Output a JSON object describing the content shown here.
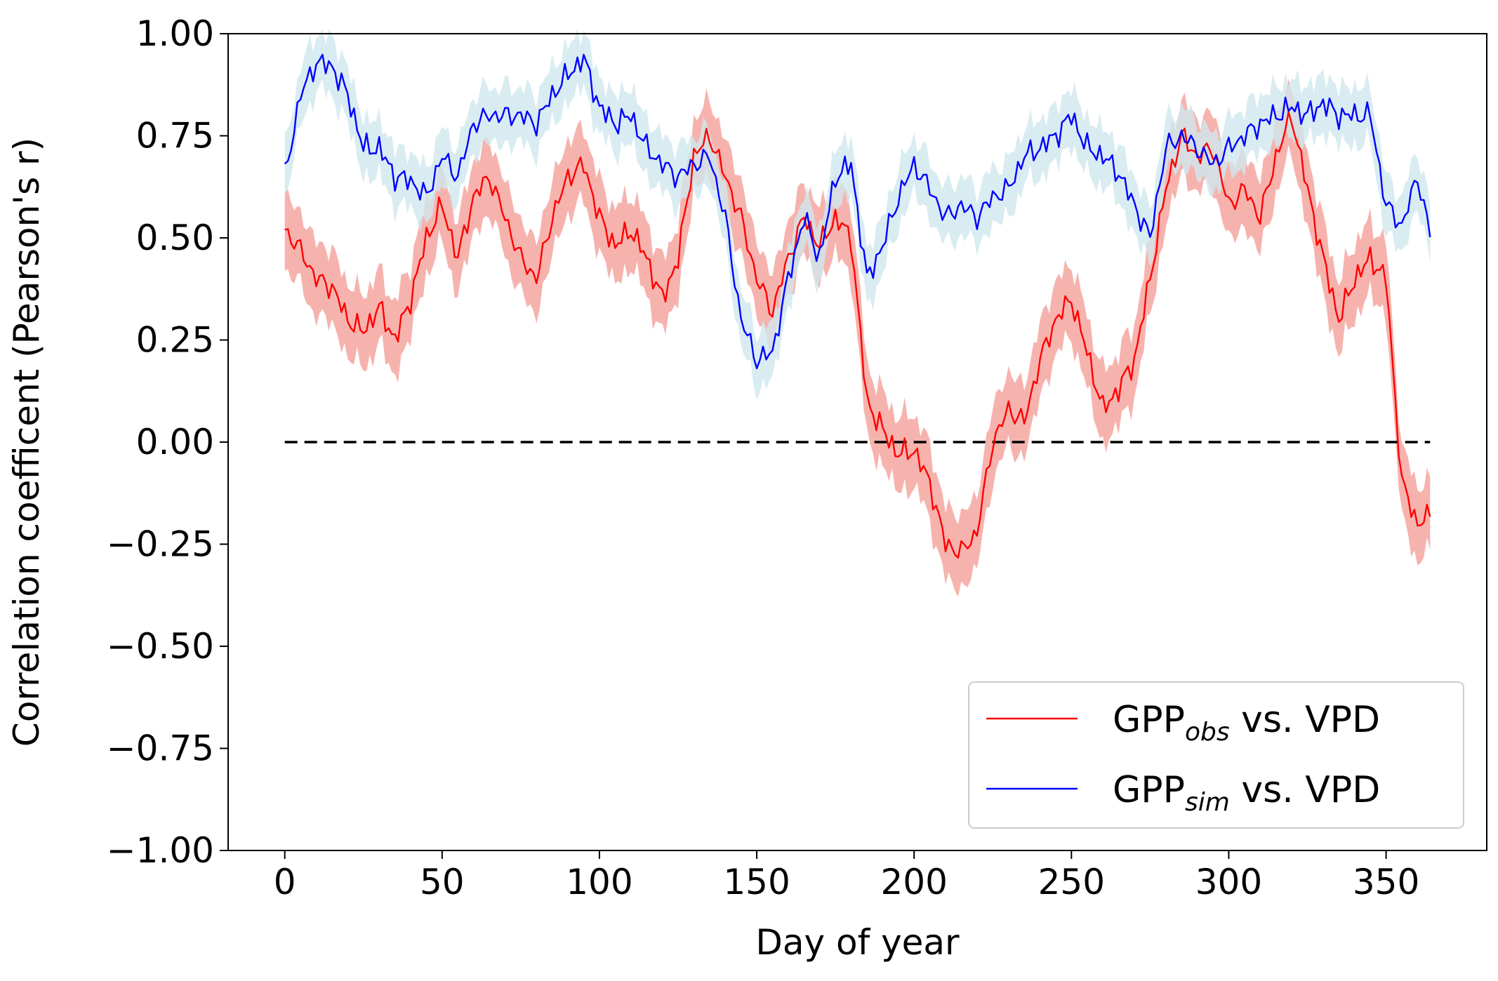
{
  "chart_data": {
    "type": "line",
    "title": "",
    "xlabel": "Day of year",
    "ylabel": "Correlation coefficent (Pearson's r)",
    "xlim": [
      -18,
      382
    ],
    "ylim": [
      -1.0,
      1.0
    ],
    "x_ticks": [
      0,
      50,
      100,
      150,
      200,
      250,
      300,
      350
    ],
    "y_ticks": [
      -1.0,
      -0.75,
      -0.5,
      -0.25,
      0.0,
      0.25,
      0.5,
      0.75,
      1.0
    ],
    "x_tick_labels": [
      "0",
      "50",
      "100",
      "150",
      "200",
      "250",
      "300",
      "350"
    ],
    "y_tick_labels": [
      "−1.00",
      "−0.75",
      "−0.50",
      "−0.25",
      "0.00",
      "0.25",
      "0.50",
      "0.75",
      "1.00"
    ],
    "grid": false,
    "legend_position": "lower-right",
    "reference_line": {
      "y": 0.0,
      "x_range": [
        0,
        364
      ],
      "style": "dashed",
      "color": "#000000"
    },
    "band_halfwidth_note_free": true,
    "series": [
      {
        "name": "GPPobs vs. VPD",
        "legend_base": "GPP",
        "legend_sub": "obs",
        "legend_suffix": " vs. VPD",
        "color": "#ff0000",
        "band_color": "#f4a09a",
        "x": [
          0,
          5,
          10,
          15,
          20,
          25,
          30,
          35,
          40,
          45,
          50,
          55,
          60,
          65,
          70,
          75,
          80,
          85,
          90,
          95,
          100,
          105,
          110,
          115,
          120,
          125,
          130,
          135,
          140,
          145,
          150,
          155,
          160,
          165,
          170,
          175,
          180,
          185,
          190,
          195,
          200,
          205,
          210,
          215,
          220,
          225,
          230,
          235,
          240,
          245,
          250,
          255,
          260,
          265,
          270,
          275,
          280,
          285,
          290,
          295,
          300,
          305,
          310,
          315,
          320,
          325,
          330,
          335,
          340,
          345,
          350,
          355,
          360,
          364
        ],
        "y": [
          0.52,
          0.47,
          0.4,
          0.38,
          0.3,
          0.27,
          0.33,
          0.25,
          0.35,
          0.5,
          0.58,
          0.45,
          0.6,
          0.65,
          0.55,
          0.45,
          0.4,
          0.55,
          0.65,
          0.68,
          0.55,
          0.48,
          0.52,
          0.45,
          0.35,
          0.45,
          0.7,
          0.75,
          0.65,
          0.55,
          0.4,
          0.32,
          0.45,
          0.55,
          0.48,
          0.55,
          0.5,
          0.1,
          0.03,
          -0.03,
          -0.02,
          -0.1,
          -0.25,
          -0.27,
          -0.22,
          0.0,
          0.08,
          0.05,
          0.2,
          0.3,
          0.35,
          0.22,
          0.08,
          0.13,
          0.2,
          0.4,
          0.62,
          0.75,
          0.7,
          0.72,
          0.58,
          0.62,
          0.55,
          0.7,
          0.8,
          0.62,
          0.45,
          0.3,
          0.4,
          0.45,
          0.4,
          -0.1,
          -0.2,
          -0.18
        ],
        "band": 0.09
      },
      {
        "name": "GPPsim vs. VPD",
        "legend_base": "GPP",
        "legend_sub": "sim",
        "legend_suffix": " vs. VPD",
        "color": "#0000ff",
        "band_color": "#cfe7ee",
        "x": [
          0,
          5,
          10,
          15,
          20,
          25,
          30,
          35,
          40,
          45,
          50,
          55,
          60,
          65,
          70,
          75,
          80,
          85,
          90,
          95,
          100,
          105,
          110,
          115,
          120,
          125,
          130,
          135,
          140,
          145,
          150,
          155,
          160,
          165,
          170,
          175,
          180,
          185,
          190,
          195,
          200,
          205,
          210,
          215,
          220,
          225,
          230,
          235,
          240,
          245,
          250,
          255,
          260,
          265,
          270,
          275,
          280,
          285,
          290,
          295,
          300,
          305,
          310,
          315,
          320,
          325,
          330,
          335,
          340,
          345,
          350,
          355,
          360,
          364
        ],
        "y": [
          0.65,
          0.85,
          0.93,
          0.92,
          0.85,
          0.72,
          0.72,
          0.65,
          0.64,
          0.6,
          0.7,
          0.65,
          0.78,
          0.8,
          0.8,
          0.8,
          0.78,
          0.85,
          0.9,
          0.94,
          0.82,
          0.78,
          0.8,
          0.72,
          0.68,
          0.65,
          0.68,
          0.7,
          0.55,
          0.3,
          0.2,
          0.22,
          0.4,
          0.55,
          0.45,
          0.65,
          0.68,
          0.4,
          0.48,
          0.6,
          0.68,
          0.62,
          0.55,
          0.58,
          0.55,
          0.6,
          0.62,
          0.7,
          0.72,
          0.75,
          0.8,
          0.72,
          0.7,
          0.66,
          0.58,
          0.5,
          0.72,
          0.75,
          0.72,
          0.68,
          0.72,
          0.75,
          0.78,
          0.8,
          0.82,
          0.8,
          0.83,
          0.8,
          0.8,
          0.8,
          0.58,
          0.53,
          0.65,
          0.51
        ],
        "band": 0.07
      }
    ]
  }
}
